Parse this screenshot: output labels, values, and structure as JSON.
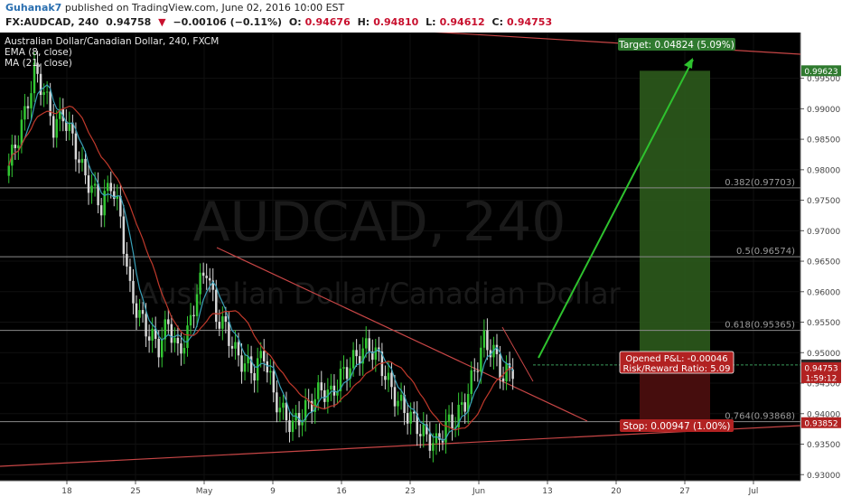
{
  "header": {
    "author": "Guhanak7",
    "published": "published on TradingView.com, June 02, 2016 10:00 EST",
    "symbol": "FX:AUDCAD, 240",
    "last": "0.94758",
    "change_arrow": "▼",
    "change": "−0.00106 (−0.11%)",
    "o_label": "O:",
    "o": "0.94676",
    "h_label": "H:",
    "h": "0.94810",
    "l_label": "L:",
    "l": "0.94612",
    "c_label": "C:",
    "c": "0.94753"
  },
  "legend": {
    "title": "Australian Dollar/Canadian Dollar, 240, FXCM",
    "ema": "EMA (8, close)",
    "ma": "MA (21, close)"
  },
  "watermark": {
    "symbol": "AUDCAD, 240",
    "name": "Australian Dollar/Canadian Dollar"
  },
  "colors": {
    "background": "#000000",
    "candle_up": "#32c832",
    "candle_down": "#d8d8d8",
    "ema": "#3aa0b8",
    "ma": "#c0392b",
    "trendline": "#c84646",
    "fib_line": "#8a8a8a",
    "target_zone": "#2c5a1c",
    "stop_zone": "#4a0e0e",
    "arrow": "#2ec22e",
    "axis_bg": "#ffffff"
  },
  "chart_data": {
    "type": "candlestick",
    "symbol": "AUDCAD",
    "timeframe": "240",
    "x_ticks": [
      "18",
      "25",
      "May",
      "9",
      "16",
      "23",
      "Jun",
      "13",
      "20",
      "27",
      "Jul"
    ],
    "y_ticks": [
      "0.99500",
      "0.99000",
      "0.98500",
      "0.98000",
      "0.97500",
      "0.97000",
      "0.96500",
      "0.96000",
      "0.95500",
      "0.95000",
      "0.94500",
      "0.94000",
      "0.93500",
      "0.93000"
    ],
    "ylim": [
      0.929,
      1.0025
    ],
    "fib_levels": [
      {
        "label": "0.382(0.97703)",
        "value": 0.97703
      },
      {
        "label": "0.5(0.96574)",
        "value": 0.96574
      },
      {
        "label": "0.618(0.95365)",
        "value": 0.95365
      },
      {
        "label": "0.764(0.93868)",
        "value": 0.93868
      }
    ],
    "price_labels": [
      {
        "text": "0.99623",
        "value": 0.99623,
        "color": "#2f7a2f"
      },
      {
        "text": "0.94799",
        "value": 0.94799,
        "color": "#2a2a2a"
      },
      {
        "text": "0.94753",
        "value": 0.94753,
        "color": "#b22222"
      },
      {
        "text": "1:59:12",
        "value": 0.9459,
        "color": "#b22222"
      },
      {
        "text": "0.93852",
        "value": 0.93852,
        "color": "#b22222"
      }
    ],
    "position": {
      "target_label": "Target: 0.04824 (5.09%)",
      "target_price": 0.99623,
      "entry_price": 0.94799,
      "stop_label": "Stop: 0.00947 (1.00%)",
      "stop_price": 0.93852,
      "pnl_label": "Opened P&L: -0.00046",
      "rr_label": "Risk/Reward Ratio: 5.09"
    },
    "price_path": [
      0.979,
      0.984,
      0.989,
      0.996,
      0.993,
      0.987,
      0.989,
      0.985,
      0.98,
      0.977,
      0.974,
      0.978,
      0.972,
      0.96,
      0.956,
      0.953,
      0.951,
      0.955,
      0.95,
      0.953,
      0.96,
      0.964,
      0.956,
      0.954,
      0.95,
      0.948,
      0.947,
      0.95,
      0.943,
      0.94,
      0.938,
      0.94,
      0.942,
      0.944,
      0.943,
      0.946,
      0.948,
      0.95,
      0.951,
      0.949,
      0.945,
      0.942,
      0.94,
      0.938,
      0.936,
      0.935,
      0.938,
      0.939,
      0.942,
      0.947,
      0.952,
      0.95,
      0.946,
      0.9475
    ]
  }
}
